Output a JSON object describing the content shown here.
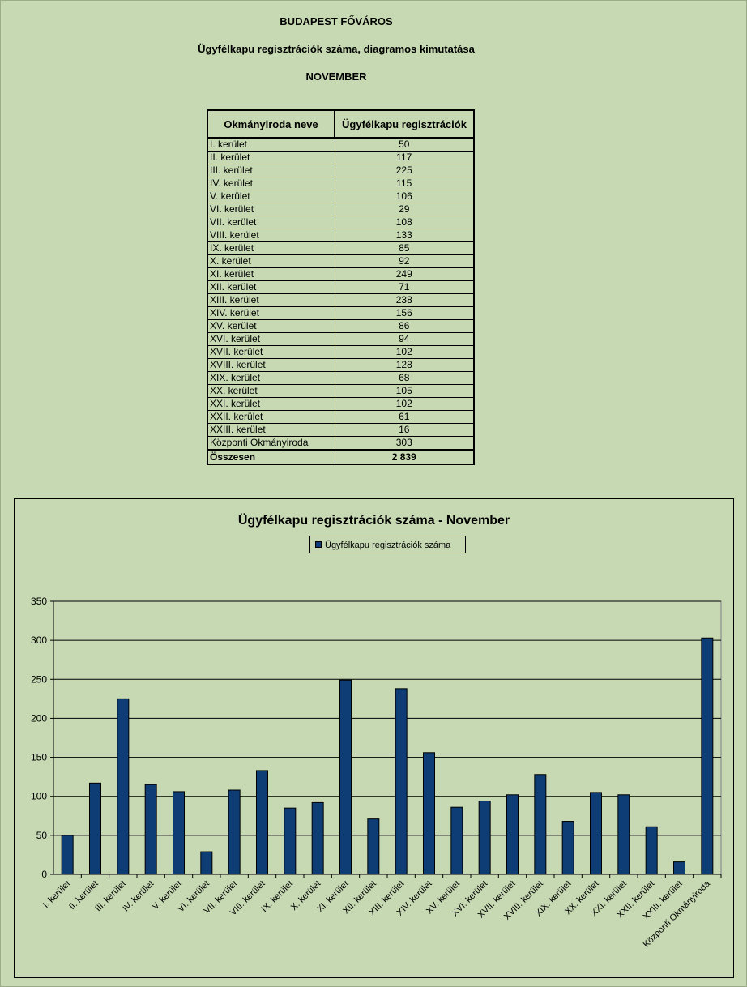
{
  "header": {
    "title": "BUDAPEST FŐVÁROS",
    "subtitle": "Ügyfélkapu regisztrációk száma, diagramos kimutatása",
    "month": "NOVEMBER"
  },
  "table": {
    "col1": "Okmányiroda neve",
    "col2": "Ügyfélkapu regisztrációk",
    "rows": [
      {
        "name": "I. kerület",
        "value": "50"
      },
      {
        "name": "II. kerület",
        "value": "117"
      },
      {
        "name": "III. kerület",
        "value": "225"
      },
      {
        "name": "IV. kerület",
        "value": "115"
      },
      {
        "name": "V. kerület",
        "value": "106"
      },
      {
        "name": "VI. kerület",
        "value": "29"
      },
      {
        "name": "VII. kerület",
        "value": "108"
      },
      {
        "name": "VIII. kerület",
        "value": "133"
      },
      {
        "name": "IX. kerület",
        "value": "85"
      },
      {
        "name": "X. kerület",
        "value": "92"
      },
      {
        "name": "XI. kerület",
        "value": "249"
      },
      {
        "name": "XII. kerület",
        "value": "71"
      },
      {
        "name": "XIII. kerület",
        "value": "238"
      },
      {
        "name": "XIV. kerület",
        "value": "156"
      },
      {
        "name": "XV. kerület",
        "value": "86"
      },
      {
        "name": "XVI. kerület",
        "value": "94"
      },
      {
        "name": "XVII. kerület",
        "value": "102"
      },
      {
        "name": "XVIII. kerület",
        "value": "128"
      },
      {
        "name": "XIX. kerület",
        "value": "68"
      },
      {
        "name": "XX. kerület",
        "value": "105"
      },
      {
        "name": "XXI. kerület",
        "value": "102"
      },
      {
        "name": "XXII. kerület",
        "value": "61"
      },
      {
        "name": "XXIII. kerület",
        "value": "16"
      },
      {
        "name": "Központi Okmányiroda",
        "value": "303"
      }
    ],
    "total_label": "Összesen",
    "total_value": "2 839"
  },
  "colors": {
    "background": "#c6d9b3",
    "bar": "#0e3c74"
  },
  "chart_data": {
    "type": "bar",
    "title": "Ügyfélkapu regisztrációk száma - November",
    "xlabel": "",
    "ylabel": "",
    "ylim": [
      0,
      350
    ],
    "yticks": [
      0,
      50,
      100,
      150,
      200,
      250,
      300,
      350
    ],
    "grid": true,
    "legend_position": "top-center",
    "categories": [
      "I. kerület",
      "II. kerület",
      "III. kerület",
      "IV. kerület",
      "V. kerület",
      "VI. kerület",
      "VII. kerület",
      "VIII. kerület",
      "IX. kerület",
      "X. kerület",
      "XI. kerület",
      "XII. kerület",
      "XIII. kerület",
      "XIV. kerület",
      "XV. kerület",
      "XVI. kerület",
      "XVII. kerület",
      "XVIII. kerület",
      "XIX. kerület",
      "XX. kerület",
      "XXI. kerület",
      "XXII. kerület",
      "XXIII. kerület",
      "Központi Okmányiroda"
    ],
    "series": [
      {
        "name": "Ügyfélkapu regisztrációk száma",
        "values": [
          50,
          117,
          225,
          115,
          106,
          29,
          108,
          133,
          85,
          92,
          249,
          71,
          238,
          156,
          86,
          94,
          102,
          128,
          68,
          105,
          102,
          61,
          16,
          303
        ]
      }
    ]
  }
}
